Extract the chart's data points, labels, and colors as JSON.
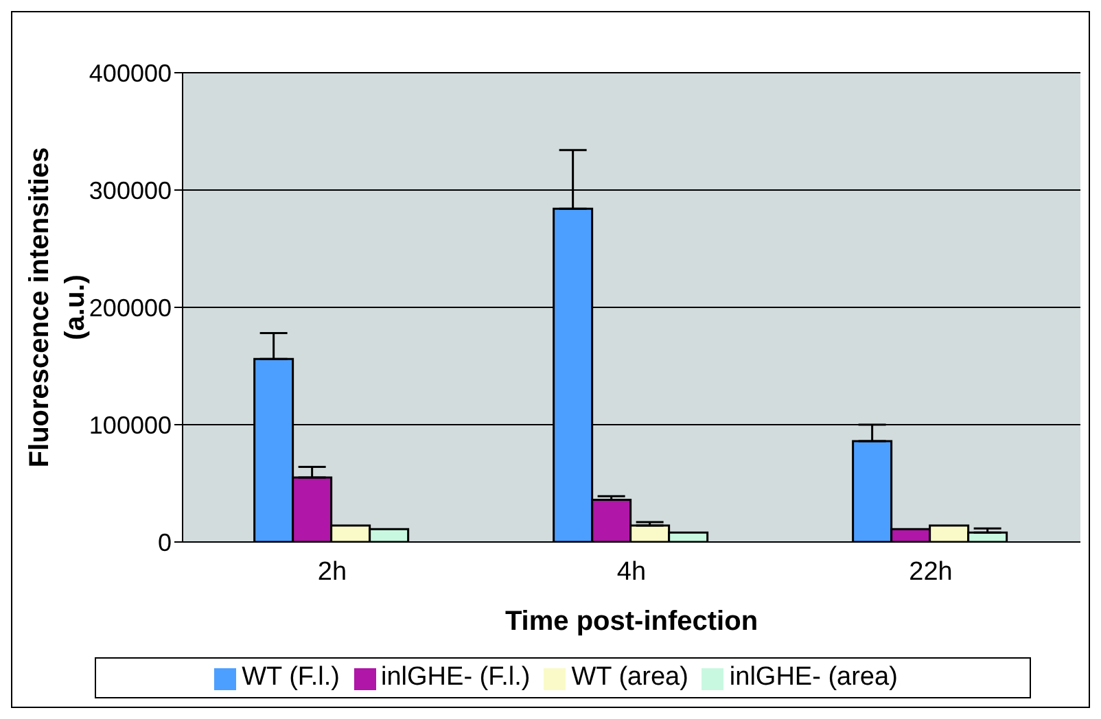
{
  "chart_data": {
    "type": "bar",
    "xlabel": "Time post-infection",
    "ylabel": "Fluorescence intensities (a.u.)",
    "categories": [
      "2h",
      "4h",
      "22h"
    ],
    "series": [
      {
        "name": "WT (F.l.)",
        "color": "#4d9fff",
        "values": [
          156000,
          284000,
          86000
        ],
        "errors": [
          [
            156000,
            178000
          ],
          [
            284000,
            334000
          ],
          [
            86000,
            100000
          ]
        ]
      },
      {
        "name": "inlGHE- (F.l.)",
        "color": "#b016a8",
        "values": [
          55000,
          36000,
          11000
        ],
        "errors": [
          [
            55000,
            64000
          ],
          [
            36000,
            39000
          ],
          null
        ]
      },
      {
        "name": "WT (area)",
        "color": "#fafac8",
        "values": [
          14000,
          14000,
          14000
        ],
        "errors": [
          null,
          [
            14000,
            17000
          ],
          null
        ]
      },
      {
        "name": "inlGHE- (area)",
        "color": "#c8f8e0",
        "values": [
          11000,
          8000,
          8000
        ],
        "errors": [
          null,
          null,
          [
            8000,
            11600
          ]
        ]
      }
    ],
    "ylim": [
      0,
      400000
    ],
    "yticks": [
      0,
      100000,
      200000,
      300000,
      400000
    ],
    "grid": "y",
    "legend": "bottom"
  }
}
